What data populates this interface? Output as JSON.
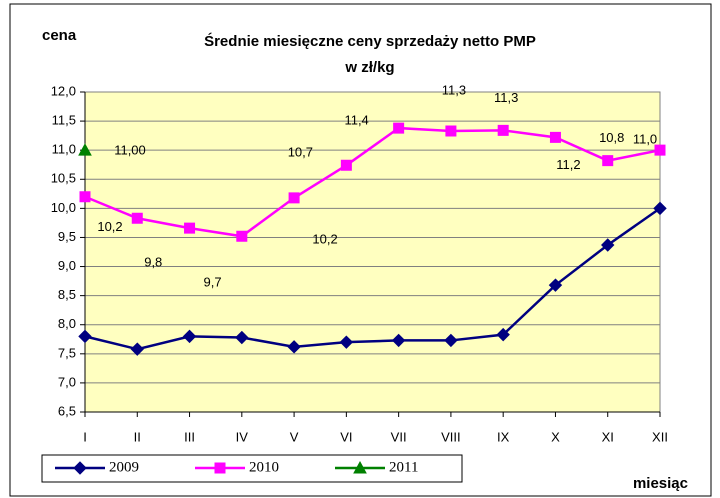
{
  "chart_data": {
    "type": "line",
    "title": "Średnie miesięczne ceny sprzedaży netto PMP",
    "subtitle": "w zł/kg",
    "y_label": "cena",
    "x_label": "miesiąc",
    "categories": [
      "I",
      "II",
      "III",
      "IV",
      "V",
      "VI",
      "VII",
      "VIII",
      "IX",
      "X",
      "XI",
      "XII"
    ],
    "series": [
      {
        "name": "2009",
        "color": "#000080",
        "marker": "diamond",
        "values": [
          7.8,
          7.58,
          7.8,
          7.78,
          7.62,
          7.7,
          7.73,
          7.73,
          7.83,
          8.68,
          9.37,
          10.0
        ]
      },
      {
        "name": "2010",
        "color": "#ff00ff",
        "marker": "square",
        "values": [
          10.2,
          9.83,
          9.66,
          9.52,
          10.18,
          10.74,
          11.38,
          11.33,
          11.34,
          11.22,
          10.82,
          11.0
        ],
        "value_labels": [
          "10,2",
          "9,8",
          "9,7",
          null,
          "10,2",
          "10,7",
          "11,4",
          "11,3",
          "11,3",
          "11,2",
          "10,8",
          "11,0"
        ]
      },
      {
        "name": "2011",
        "color": "#008000",
        "marker": "triangle",
        "values": [
          11.0,
          null,
          null,
          null,
          null,
          null,
          null,
          null,
          null,
          null,
          null,
          null
        ],
        "value_labels": [
          "11,00",
          null,
          null,
          null,
          null,
          null,
          null,
          null,
          null,
          null,
          null,
          null
        ]
      }
    ],
    "ylim": [
      6.5,
      12.0
    ],
    "yticks": [
      {
        "value": 6.5,
        "label": "6,5"
      },
      {
        "value": 7.0,
        "label": "7,0"
      },
      {
        "value": 7.5,
        "label": "7,5"
      },
      {
        "value": 8.0,
        "label": "8,0"
      },
      {
        "value": 8.5,
        "label": "8,5"
      },
      {
        "value": 9.0,
        "label": "9,0"
      },
      {
        "value": 9.5,
        "label": "9,5"
      },
      {
        "value": 10.0,
        "label": "10,0"
      },
      {
        "value": 10.5,
        "label": "10,5"
      },
      {
        "value": 11.0,
        "label": "11,0"
      },
      {
        "value": 11.5,
        "label": "11,5"
      },
      {
        "value": 12.0,
        "label": "12,0"
      }
    ],
    "grid": true,
    "legend": "bottom-left",
    "plot_background": "#ffffc0"
  }
}
